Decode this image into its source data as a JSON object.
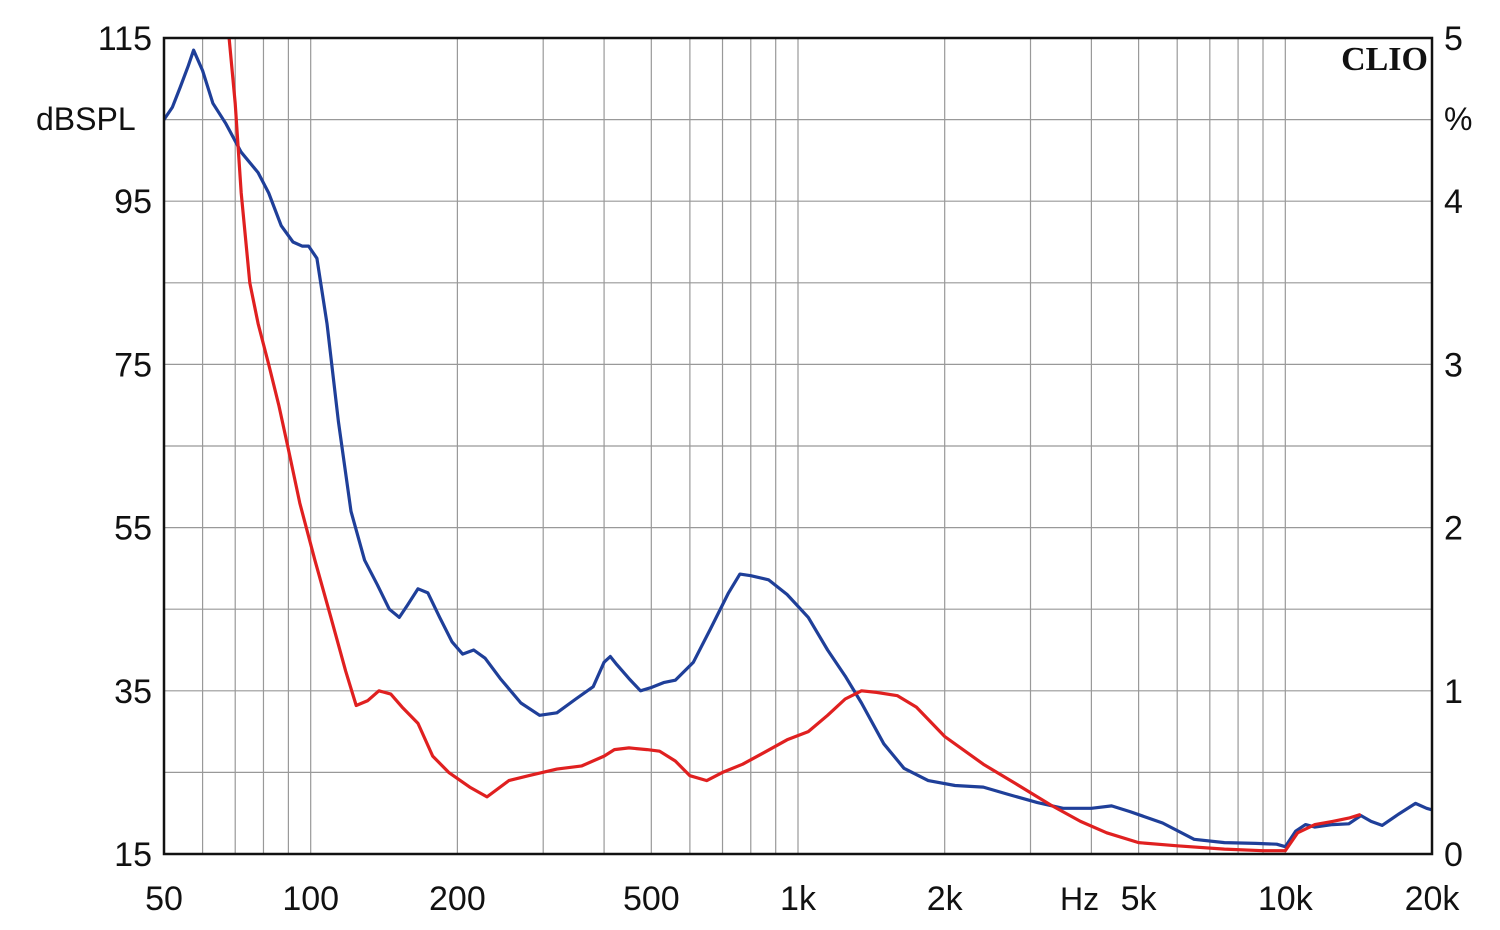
{
  "chart_data": {
    "type": "line",
    "brand": "CLIO",
    "x_scale": "log",
    "xlim": [
      50,
      20000
    ],
    "x_ticks": [
      {
        "value": 50,
        "label": "50"
      },
      {
        "value": 100,
        "label": "100"
      },
      {
        "value": 200,
        "label": "200"
      },
      {
        "value": 500,
        "label": "500"
      },
      {
        "value": 1000,
        "label": "1k"
      },
      {
        "value": 2000,
        "label": "2k"
      },
      {
        "value": 5000,
        "label": "5k"
      },
      {
        "value": 10000,
        "label": "10k"
      },
      {
        "value": 20000,
        "label": "20k"
      }
    ],
    "x_unit_label": "Hz",
    "y_left": {
      "label": "dBSPL",
      "lim": [
        15,
        115
      ],
      "tick_values": [
        15,
        35,
        55,
        75,
        95,
        115
      ],
      "tick_labels": [
        "15",
        "35",
        "55",
        "75",
        "95",
        "115"
      ]
    },
    "y_right": {
      "label": "%",
      "lim": [
        0,
        5
      ],
      "tick_values": [
        0,
        1,
        2,
        3,
        4,
        5
      ],
      "tick_labels": [
        "0",
        "1",
        "2",
        "3",
        "4",
        "5"
      ]
    },
    "grid": true,
    "colors": {
      "series_1": "#1f3f99",
      "series_2": "#e02020",
      "grid": "#999999"
    },
    "series": [
      {
        "color": "#1f3f99",
        "axis": "left",
        "points": [
          [
            50,
            105
          ],
          [
            52,
            106.5
          ],
          [
            54,
            109
          ],
          [
            56,
            111.5
          ],
          [
            57.5,
            113.5
          ],
          [
            60,
            111
          ],
          [
            63,
            107
          ],
          [
            67,
            104.5
          ],
          [
            72,
            101
          ],
          [
            78,
            98.5
          ],
          [
            82,
            96
          ],
          [
            87,
            92
          ],
          [
            92,
            90
          ],
          [
            96,
            89.5
          ],
          [
            99,
            89.5
          ],
          [
            103,
            88
          ],
          [
            108,
            80
          ],
          [
            114,
            68
          ],
          [
            121,
            57
          ],
          [
            129,
            51
          ],
          [
            137,
            48
          ],
          [
            145,
            45
          ],
          [
            152,
            44
          ],
          [
            158,
            45.5
          ],
          [
            166,
            47.5
          ],
          [
            174,
            47
          ],
          [
            184,
            44
          ],
          [
            195,
            41
          ],
          [
            205,
            39.5
          ],
          [
            216,
            40
          ],
          [
            228,
            39
          ],
          [
            245,
            36.5
          ],
          [
            270,
            33.5
          ],
          [
            295,
            32
          ],
          [
            320,
            32.3
          ],
          [
            350,
            34
          ],
          [
            380,
            35.5
          ],
          [
            400,
            38.5
          ],
          [
            412,
            39.2
          ],
          [
            425,
            38.2
          ],
          [
            450,
            36.5
          ],
          [
            475,
            35
          ],
          [
            500,
            35.4
          ],
          [
            530,
            36
          ],
          [
            560,
            36.3
          ],
          [
            610,
            38.5
          ],
          [
            660,
            42.5
          ],
          [
            720,
            47
          ],
          [
            760,
            49.3
          ],
          [
            800,
            49.1
          ],
          [
            870,
            48.6
          ],
          [
            950,
            46.8
          ],
          [
            1050,
            44
          ],
          [
            1150,
            40
          ],
          [
            1250,
            36.8
          ],
          [
            1350,
            33.5
          ],
          [
            1500,
            28.5
          ],
          [
            1650,
            25.5
          ],
          [
            1850,
            24
          ],
          [
            2100,
            23.4
          ],
          [
            2400,
            23.2
          ],
          [
            2700,
            22.3
          ],
          [
            3100,
            21.3
          ],
          [
            3500,
            20.6
          ],
          [
            4000,
            20.6
          ],
          [
            4400,
            20.9
          ],
          [
            4800,
            20.2
          ],
          [
            5600,
            18.8
          ],
          [
            6500,
            16.8
          ],
          [
            7500,
            16.4
          ],
          [
            8700,
            16.3
          ],
          [
            9600,
            16.2
          ],
          [
            10000,
            15.9
          ],
          [
            10500,
            17.8
          ],
          [
            11000,
            18.6
          ],
          [
            11500,
            18.3
          ],
          [
            12500,
            18.6
          ],
          [
            13500,
            18.7
          ],
          [
            14300,
            19.7
          ],
          [
            15000,
            19
          ],
          [
            15800,
            18.5
          ],
          [
            17000,
            19.8
          ],
          [
            18500,
            21.2
          ],
          [
            19500,
            20.6
          ],
          [
            20000,
            20.4
          ]
        ]
      },
      {
        "color": "#e02020",
        "axis": "right",
        "points": [
          [
            68,
            5
          ],
          [
            70,
            4.6
          ],
          [
            72,
            4.05
          ],
          [
            75,
            3.5
          ],
          [
            78,
            3.25
          ],
          [
            82,
            3
          ],
          [
            86,
            2.75
          ],
          [
            90,
            2.48
          ],
          [
            95,
            2.15
          ],
          [
            102,
            1.8
          ],
          [
            110,
            1.45
          ],
          [
            118,
            1.12
          ],
          [
            124,
            0.91
          ],
          [
            131,
            0.94
          ],
          [
            138,
            1
          ],
          [
            146,
            0.98
          ],
          [
            154,
            0.9
          ],
          [
            166,
            0.8
          ],
          [
            178,
            0.6
          ],
          [
            192,
            0.5
          ],
          [
            212,
            0.41
          ],
          [
            230,
            0.35
          ],
          [
            255,
            0.45
          ],
          [
            280,
            0.48
          ],
          [
            320,
            0.52
          ],
          [
            360,
            0.54
          ],
          [
            400,
            0.6
          ],
          [
            420,
            0.64
          ],
          [
            450,
            0.65
          ],
          [
            490,
            0.64
          ],
          [
            520,
            0.63
          ],
          [
            560,
            0.57
          ],
          [
            600,
            0.48
          ],
          [
            650,
            0.45
          ],
          [
            700,
            0.5
          ],
          [
            770,
            0.55
          ],
          [
            850,
            0.62
          ],
          [
            950,
            0.7
          ],
          [
            1050,
            0.75
          ],
          [
            1150,
            0.85
          ],
          [
            1250,
            0.95
          ],
          [
            1350,
            1
          ],
          [
            1450,
            0.99
          ],
          [
            1600,
            0.97
          ],
          [
            1750,
            0.9
          ],
          [
            2000,
            0.72
          ],
          [
            2400,
            0.55
          ],
          [
            2800,
            0.43
          ],
          [
            3300,
            0.3
          ],
          [
            3800,
            0.2
          ],
          [
            4300,
            0.13
          ],
          [
            5000,
            0.07
          ],
          [
            6000,
            0.05
          ],
          [
            7500,
            0.03
          ],
          [
            9000,
            0.02
          ],
          [
            10000,
            0.02
          ],
          [
            10600,
            0.13
          ],
          [
            11500,
            0.18
          ],
          [
            12500,
            0.2
          ],
          [
            13500,
            0.22
          ],
          [
            14200,
            0.24
          ]
        ]
      }
    ]
  }
}
